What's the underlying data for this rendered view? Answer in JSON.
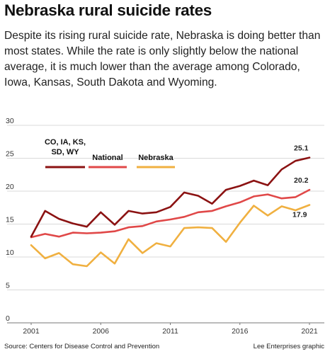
{
  "header": {
    "title": "Nebraska rural suicide rates",
    "subtitle": "Despite its rising rural suicide rate, Nebraska is doing better than most states. While the rate is only slightly below the national average, it is much lower than the average among Colorado, Iowa, Kansas, South Dakota and Wyoming."
  },
  "footer": {
    "source": "Source: Centers for Disease Control and Prevention",
    "credit": "Lee Enterprises graphic"
  },
  "colors": {
    "co_group": "#8b1212",
    "national": "#e04848",
    "nebraska": "#f0b040",
    "grid": "#cccccc"
  },
  "chart_data": {
    "type": "line",
    "title": "",
    "xlabel": "",
    "ylabel": "",
    "x": [
      2001,
      2002,
      2003,
      2004,
      2005,
      2006,
      2007,
      2008,
      2009,
      2010,
      2011,
      2012,
      2013,
      2014,
      2015,
      2016,
      2017,
      2018,
      2019,
      2020,
      2021
    ],
    "x_ticks": [
      "2001",
      "2006",
      "2011",
      "2016",
      "2021"
    ],
    "y_ticks": [
      "0",
      "5",
      "10",
      "15",
      "20",
      "25",
      "30"
    ],
    "ylim": [
      0,
      30
    ],
    "grid": true,
    "legend_placement": "top-left",
    "series": [
      {
        "name": "CO, IA, KS, SD, WY",
        "legend_lines": [
          "CO, IA, KS,",
          "SD, WY"
        ],
        "values": [
          13.1,
          17.0,
          15.8,
          15.1,
          14.6,
          16.8,
          14.9,
          17.0,
          16.6,
          16.8,
          17.6,
          19.8,
          19.3,
          18.1,
          20.2,
          20.8,
          21.6,
          20.9,
          23.3,
          24.6,
          25.1
        ],
        "end_label": "25.1"
      },
      {
        "name": "National",
        "legend_lines": [
          "National"
        ],
        "values": [
          13.0,
          13.5,
          13.1,
          13.7,
          13.6,
          13.7,
          13.9,
          14.5,
          14.7,
          15.4,
          15.7,
          16.1,
          16.8,
          17.0,
          17.7,
          18.3,
          19.2,
          19.5,
          18.9,
          19.1,
          20.2
        ],
        "end_label": "20.2"
      },
      {
        "name": "Nebraska",
        "legend_lines": [
          "Nebraska"
        ],
        "values": [
          11.8,
          9.8,
          10.6,
          8.9,
          8.6,
          10.7,
          9.0,
          12.7,
          10.6,
          12.1,
          11.6,
          14.4,
          14.5,
          14.4,
          12.3,
          15.2,
          17.8,
          16.3,
          17.7,
          17.1,
          17.9
        ],
        "end_label": "17.9"
      }
    ]
  }
}
